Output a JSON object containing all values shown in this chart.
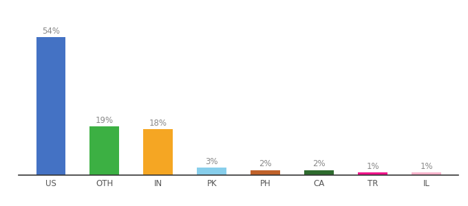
{
  "categories": [
    "US",
    "OTH",
    "IN",
    "PK",
    "PH",
    "CA",
    "TR",
    "IL"
  ],
  "values": [
    54,
    19,
    18,
    3,
    2,
    2,
    1,
    1
  ],
  "bar_colors": [
    "#4472c4",
    "#3cb043",
    "#f5a623",
    "#87ceeb",
    "#c0622a",
    "#2e6b2e",
    "#f0148a",
    "#f8b4cc"
  ],
  "background_color": "#ffffff",
  "ylim": [
    0,
    62
  ],
  "bar_width": 0.55,
  "label_color": "#888888",
  "label_fontsize": 8.5,
  "tick_fontsize": 8.5
}
